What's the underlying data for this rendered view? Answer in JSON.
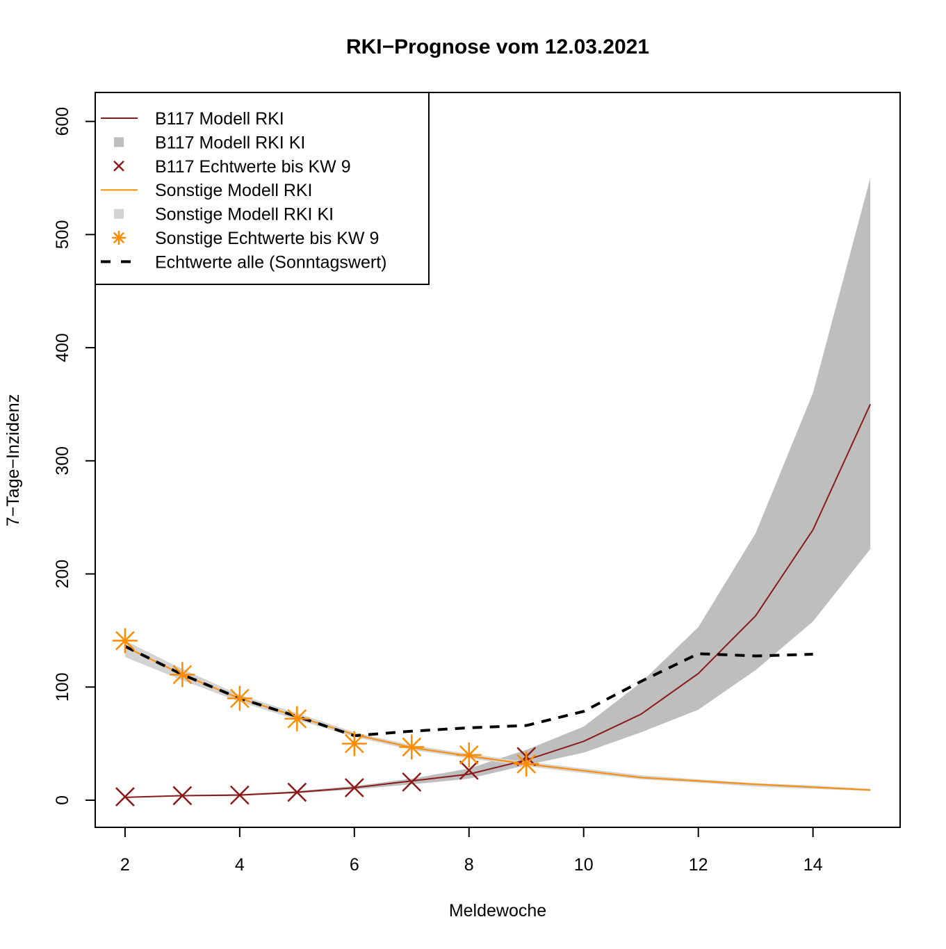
{
  "chart_data": {
    "type": "line",
    "title": "RKI−Prognose vom 12.03.2021",
    "xlabel": "Meldewoche",
    "ylabel": "7−Tage−Inzidenz",
    "xlim": [
      1.48,
      15.52
    ],
    "ylim": [
      -24,
      625.6
    ],
    "xticks": [
      2,
      4,
      6,
      8,
      10,
      12,
      14
    ],
    "yticks": [
      0,
      100,
      200,
      300,
      400,
      500,
      600
    ],
    "grid": false,
    "legend_position": "top-left",
    "colors": {
      "b117": "#8B1A1A",
      "b117_ci": "#BEBEBE",
      "sonstige": "#FF8C00",
      "sonstige_ci": "#D3D3D3",
      "alle": "#000000"
    },
    "series": [
      {
        "name": "B117 Modell RKI KI",
        "kind": "band",
        "color_key": "b117_ci",
        "x": [
          2,
          3,
          4,
          5,
          6,
          7,
          8,
          9,
          10,
          11,
          12,
          13,
          14,
          15
        ],
        "lower": [
          2,
          3.5,
          4,
          6,
          9.5,
          14,
          19,
          31,
          42,
          60,
          80,
          115,
          158,
          222
        ],
        "upper": [
          3,
          4.5,
          5.5,
          8,
          12.5,
          19,
          28,
          44.5,
          65,
          104,
          153,
          236,
          360,
          550
        ]
      },
      {
        "name": "Sonstige Modell RKI KI",
        "kind": "band",
        "color_key": "sonstige_ci",
        "x": [
          2,
          3,
          4,
          5,
          6,
          7,
          8,
          9,
          10,
          11,
          12,
          13,
          14,
          15
        ],
        "lower": [
          126.5,
          106,
          87,
          71,
          56,
          44.5,
          37,
          30,
          24,
          18.5,
          15.5,
          12,
          10,
          8
        ],
        "upper": [
          141,
          116,
          93,
          77,
          60,
          48.5,
          41,
          34,
          28,
          22,
          18.5,
          15,
          13,
          10
        ]
      },
      {
        "name": "B117 Modell RKI",
        "kind": "line",
        "color_key": "b117",
        "x": [
          2,
          3,
          4,
          5,
          6,
          7,
          8,
          9,
          10,
          11,
          12,
          13,
          14,
          15
        ],
        "values": [
          2.5,
          4,
          4.5,
          7,
          11,
          17,
          23,
          35.5,
          52,
          76,
          112,
          163,
          239,
          350
        ]
      },
      {
        "name": "Sonstige Modell RKI",
        "kind": "line",
        "color_key": "sonstige",
        "x": [
          2,
          3,
          4,
          5,
          6,
          7,
          8,
          9,
          10,
          11,
          12,
          13,
          14,
          15
        ],
        "values": [
          135.7,
          111,
          90,
          74,
          58,
          46.5,
          39,
          32,
          26,
          20,
          17,
          14,
          11.5,
          9
        ]
      },
      {
        "name": "B117 Echtwerte bis KW 9",
        "kind": "points-x",
        "color_key": "b117",
        "x": [
          2,
          3,
          4,
          5,
          6,
          7,
          8,
          9
        ],
        "values": [
          3,
          4,
          4.5,
          7,
          11,
          16,
          26.5,
          38.5
        ]
      },
      {
        "name": "Sonstige Echtwerte bis KW 9",
        "kind": "points-star",
        "color_key": "sonstige",
        "x": [
          2,
          3,
          4,
          5,
          6,
          7,
          8,
          9
        ],
        "values": [
          141,
          111,
          90,
          72,
          50,
          47,
          40,
          32
        ]
      },
      {
        "name": "Echtwerte alle (Sonntagswert)",
        "kind": "dashed",
        "color_key": "alle",
        "x": [
          2,
          3,
          4,
          5,
          6,
          7,
          8,
          9,
          10,
          11,
          12,
          13,
          14
        ],
        "values": [
          136,
          111,
          90,
          74,
          57,
          61,
          64,
          66,
          78.5,
          105,
          129.5,
          127.5,
          129
        ]
      }
    ],
    "legend": [
      {
        "label": "B117 Modell RKI",
        "symbol": "line",
        "color_key": "b117"
      },
      {
        "label": "B117 Modell RKI KI",
        "symbol": "square",
        "color_key": "b117_ci"
      },
      {
        "label": "B117 Echtwerte bis KW 9",
        "symbol": "x",
        "color_key": "b117"
      },
      {
        "label": "Sonstige Modell RKI",
        "symbol": "line",
        "color_key": "sonstige"
      },
      {
        "label": "Sonstige Modell RKI KI",
        "symbol": "square",
        "color_key": "sonstige_ci"
      },
      {
        "label": "Sonstige Echtwerte bis KW 9",
        "symbol": "star",
        "color_key": "sonstige"
      },
      {
        "label": "Echtwerte alle (Sonntagswert)",
        "symbol": "dashed",
        "color_key": "alle"
      }
    ]
  }
}
